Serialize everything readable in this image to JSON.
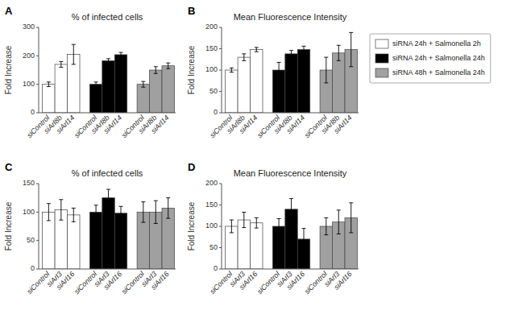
{
  "chart_data": [
    {
      "type": "bar",
      "title": "% of infected cells",
      "annotations": [
        "A"
      ],
      "ylabel": "Fold Increase",
      "categories": [
        "siControl",
        "siArl8b",
        "siArl14",
        "siControl",
        "siArl8b",
        "siArl14",
        "siControl",
        "siArl8b",
        "siArl14"
      ],
      "series": [
        {
          "color": "white",
          "values": [
            100,
            170,
            205,
            null,
            null,
            null,
            null,
            null,
            null
          ],
          "errors": [
            8,
            10,
            35,
            null,
            null,
            null,
            null,
            null,
            null
          ]
        },
        {
          "color": "black",
          "values": [
            null,
            null,
            null,
            100,
            183,
            204,
            null,
            null,
            null
          ],
          "errors": [
            null,
            null,
            null,
            8,
            7,
            8,
            null,
            null,
            null
          ]
        },
        {
          "color": "#a0a0a0",
          "values": [
            null,
            null,
            null,
            null,
            null,
            null,
            100,
            150,
            165
          ],
          "errors": [
            null,
            null,
            null,
            null,
            null,
            null,
            10,
            12,
            10
          ]
        }
      ],
      "ylim": [
        0,
        300
      ],
      "yticks": [
        0,
        100,
        200,
        300
      ],
      "grid": false
    },
    {
      "type": "bar",
      "title": "Mean Fluorescence Intensity",
      "annotations": [
        "B"
      ],
      "ylabel": "Fold Increase",
      "categories": [
        "siControl",
        "siArl8b",
        "siArl14",
        "siControl",
        "siArl8b",
        "siArl14",
        "siControl",
        "siArl8b",
        "siArl14"
      ],
      "series": [
        {
          "name": "siRNA 24h + Salmonella 2h",
          "color": "white",
          "values": [
            100,
            130,
            148,
            null,
            null,
            null,
            null,
            null,
            null
          ],
          "errors": [
            5,
            8,
            5,
            null,
            null,
            null,
            null,
            null,
            null
          ]
        },
        {
          "name": "siRNA 24h + Salmonella 24h",
          "color": "black",
          "values": [
            null,
            null,
            null,
            100,
            138,
            148,
            null,
            null,
            null
          ],
          "errors": [
            null,
            null,
            null,
            18,
            8,
            8,
            null,
            null,
            null
          ]
        },
        {
          "name": "siRNA 48h + Salmonella 24h",
          "color": "#a0a0a0",
          "values": [
            null,
            null,
            null,
            null,
            null,
            null,
            100,
            140,
            148
          ],
          "errors": [
            null,
            null,
            null,
            null,
            null,
            null,
            30,
            18,
            40
          ]
        }
      ],
      "ylim": [
        0,
        200
      ],
      "yticks": [
        0,
        50,
        100,
        150,
        200
      ],
      "grid": false,
      "legend": "right"
    },
    {
      "type": "bar",
      "title": "% of infected cells",
      "annotations": [
        "C"
      ],
      "ylabel": "Fold Increase",
      "categories": [
        "siControl",
        "siArl3",
        "siArl16",
        "siControl",
        "siArl3",
        "siArl16",
        "siControl",
        "siArl3",
        "siArl16"
      ],
      "series": [
        {
          "color": "white",
          "values": [
            100,
            104,
            95,
            null,
            null,
            null,
            null,
            null,
            null
          ],
          "errors": [
            15,
            18,
            12,
            null,
            null,
            null,
            null,
            null,
            null
          ]
        },
        {
          "color": "black",
          "values": [
            null,
            null,
            null,
            100,
            125,
            98,
            null,
            null,
            null
          ],
          "errors": [
            null,
            null,
            null,
            12,
            15,
            12,
            null,
            null,
            null
          ]
        },
        {
          "color": "#a0a0a0",
          "values": [
            null,
            null,
            null,
            null,
            null,
            null,
            100,
            100,
            107
          ],
          "errors": [
            null,
            null,
            null,
            null,
            null,
            null,
            18,
            20,
            18
          ]
        }
      ],
      "ylim": [
        0,
        150
      ],
      "yticks": [
        0,
        50,
        100,
        150
      ],
      "grid": false
    },
    {
      "type": "bar",
      "title": "Mean Fluorescence Intensity",
      "annotations": [
        "D"
      ],
      "ylabel": "Fold Increase",
      "categories": [
        "siControl",
        "siArl3",
        "siArl16",
        "siControl",
        "siArl3",
        "siArl16",
        "siControl",
        "siArl3",
        "siArl16"
      ],
      "series": [
        {
          "color": "white",
          "values": [
            100,
            115,
            108,
            null,
            null,
            null,
            null,
            null,
            null
          ],
          "errors": [
            15,
            18,
            12,
            null,
            null,
            null,
            null,
            null,
            null
          ]
        },
        {
          "color": "black",
          "values": [
            null,
            null,
            null,
            100,
            140,
            70,
            null,
            null,
            null
          ],
          "errors": [
            null,
            null,
            null,
            18,
            25,
            25,
            null,
            null,
            null
          ]
        },
        {
          "color": "#a0a0a0",
          "values": [
            null,
            null,
            null,
            null,
            null,
            null,
            100,
            110,
            120
          ],
          "errors": [
            null,
            null,
            null,
            null,
            null,
            null,
            20,
            28,
            35
          ]
        }
      ],
      "ylim": [
        0,
        200
      ],
      "yticks": [
        0,
        50,
        100,
        150,
        200
      ],
      "grid": false
    }
  ]
}
